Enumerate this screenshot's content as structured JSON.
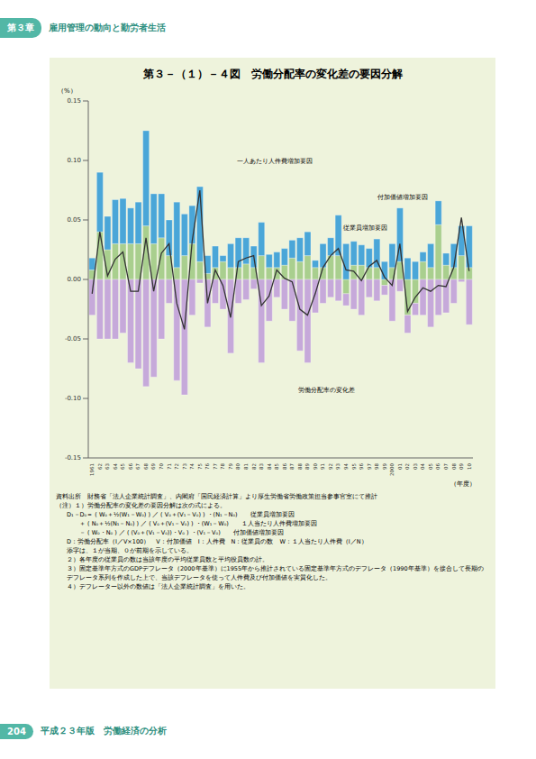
{
  "header": {
    "chapter": "第３章",
    "chapter_title": "雇用管理の動向と勤労者生活"
  },
  "footer": {
    "page": "204",
    "title": "平成２３年版　労働経済の分析"
  },
  "chart_data": {
    "type": "bar",
    "stacked": true,
    "title": "第３－（１）－４図　労働分配率の変化差の要因分解",
    "y_label": "（%）",
    "x_label": "（年度）",
    "grid": false,
    "categories": [
      "1961",
      "62",
      "63",
      "64",
      "65",
      "66",
      "67",
      "68",
      "69",
      "70",
      "71",
      "72",
      "73",
      "74",
      "75",
      "76",
      "77",
      "78",
      "79",
      "80",
      "81",
      "82",
      "83",
      "84",
      "85",
      "86",
      "87",
      "88",
      "89",
      "90",
      "91",
      "92",
      "93",
      "94",
      "95",
      "96",
      "97",
      "98",
      "99",
      "2000",
      "01",
      "02",
      "03",
      "04",
      "05",
      "06",
      "07",
      "08",
      "09",
      "10"
    ],
    "ylim": [
      -0.15,
      0.15
    ],
    "yticks": [
      {
        "value": -0.15,
        "label": "-0.15"
      },
      {
        "value": -0.1,
        "label": "-0.10"
      },
      {
        "value": -0.05,
        "label": "-0.05"
      },
      {
        "value": 0,
        "label": "0.00"
      },
      {
        "value": 0.05,
        "label": "0.05"
      },
      {
        "value": 0.1,
        "label": "0.10"
      },
      {
        "value": 0.15,
        "label": "0.15"
      }
    ],
    "series": [
      {
        "name": "従業員増加要因",
        "type": "bar",
        "color": "#a9cf8e",
        "values": [
          0.008,
          0.04,
          0.025,
          0.03,
          0.03,
          0.03,
          0.03,
          0.045,
          0.03,
          0.035,
          0.02,
          0.01,
          0.02,
          0.03,
          0.015,
          0.005,
          0.01,
          0.015,
          0.01,
          0.01,
          0.013,
          0.01,
          0.02,
          0.01,
          0.01,
          0.012,
          0.018,
          0.015,
          0.02,
          0.01,
          0.01,
          0.02,
          0.02,
          -0.012,
          0.012,
          0.012,
          0.01,
          0.01,
          -0.005,
          0.01,
          0.015,
          -0.03,
          -0.02,
          0.015,
          0.01,
          0.046,
          0.012,
          0.01,
          0.02,
          0.01
        ]
      },
      {
        "name": "一人あたり人件費増加要因",
        "type": "bar",
        "color": "#4aa6d8",
        "values": [
          0.01,
          0.05,
          0.028,
          0.037,
          0.038,
          0.03,
          0.035,
          0.08,
          0.042,
          0.037,
          0.03,
          0.055,
          0.035,
          0.032,
          0.063,
          0.015,
          0.018,
          0.005,
          0.02,
          0.025,
          0.022,
          0.018,
          0.028,
          0.011,
          0.013,
          0.014,
          0.015,
          0.02,
          0.02,
          0.006,
          0.02,
          0.015,
          0.034,
          0.03,
          0.02,
          0.017,
          0.016,
          0.024,
          0.015,
          0.02,
          0.045,
          0.018,
          0.015,
          0.008,
          0.02,
          0.02,
          0.01,
          0.02,
          0.025,
          0.035
        ]
      },
      {
        "name": "付加価値増加要因",
        "type": "bar",
        "color": "#c6a9da",
        "values": [
          -0.03,
          -0.05,
          -0.05,
          -0.05,
          -0.045,
          -0.07,
          -0.075,
          -0.09,
          -0.082,
          -0.05,
          -0.02,
          -0.085,
          -0.097,
          -0.03,
          -0.003,
          -0.04,
          -0.02,
          -0.025,
          -0.062,
          -0.02,
          -0.017,
          -0.008,
          -0.07,
          -0.035,
          -0.015,
          -0.025,
          -0.035,
          -0.06,
          -0.07,
          -0.028,
          -0.02,
          -0.015,
          -0.018,
          -0.01,
          -0.025,
          -0.03,
          -0.015,
          -0.018,
          -0.008,
          -0.035,
          -0.01,
          -0.015,
          -0.01,
          -0.03,
          -0.04,
          -0.03,
          -0.028,
          -0.02,
          -0.002,
          -0.038
        ]
      },
      {
        "name": "労働分配率の変化差",
        "type": "line",
        "color": "#333333",
        "values": [
          -0.012,
          0.04,
          0.003,
          0.017,
          0.023,
          -0.01,
          -0.01,
          0.035,
          -0.01,
          0.022,
          0.03,
          -0.02,
          -0.042,
          0.032,
          0.075,
          -0.02,
          0.008,
          -0.005,
          -0.032,
          0.015,
          0.018,
          0.02,
          -0.022,
          -0.014,
          0.008,
          0.001,
          -0.002,
          -0.025,
          -0.03,
          -0.012,
          0.01,
          0.02,
          0.026,
          0.008,
          0.007,
          -0.001,
          0.011,
          0.016,
          0.002,
          -0.005,
          0.03,
          -0.027,
          -0.015,
          -0.007,
          -0.01,
          -0.005,
          -0.006,
          0.01,
          0.052,
          0.007
        ]
      }
    ]
  },
  "notes": {
    "source": "資料出所　財務省「法人企業統計調査」、内閣府「国民経済計算」より厚生労働省労働政策担当参事官室にて推計",
    "lines": [
      "（注）１）労働分配率の変化差の要因分解は次の式による。",
      "D₁－D₀＝ ( W₀＋½(W₁－W₀) ) ／ ( V₀＋(V₁－V₀) ) ・(N₁－N₀)　　従業員増加要因",
      "　　＋ ( N₀＋½(N₁－N₀) ) ／ ( V₀＋(V₁－V₀) ) ・(W₁－W₀)　　１人当たり人件費増加要因",
      "　　－ ( W₀・N₀ ) ／ ( (V₀＋(V₁－V₀))・V₀ ) ・(V₁－V₀)　　付加価値増加要因",
      "D：労働分配率（I／V×100）　V：付加価値　I：人件費　N：従業員の数　W：１人当たり人件費（I／N）",
      "添字は、１が当期、０が前期を示している。",
      "２）各年度の従業員の数は当該年度の平均従業員数と平均役員数の計。",
      "３）固定基準年方式のGDPデフレータ（2000年基準）に1955年から推計されている固定基準年方式のデフレータ（1990年基準）を接合して長期のデフレータ系列を作成した上で、当該デフレータを使って人件費及び付加価値を実質化した。",
      "４）デフレーター以外の数値は「法人企業統計調査」を用いた。"
    ]
  }
}
